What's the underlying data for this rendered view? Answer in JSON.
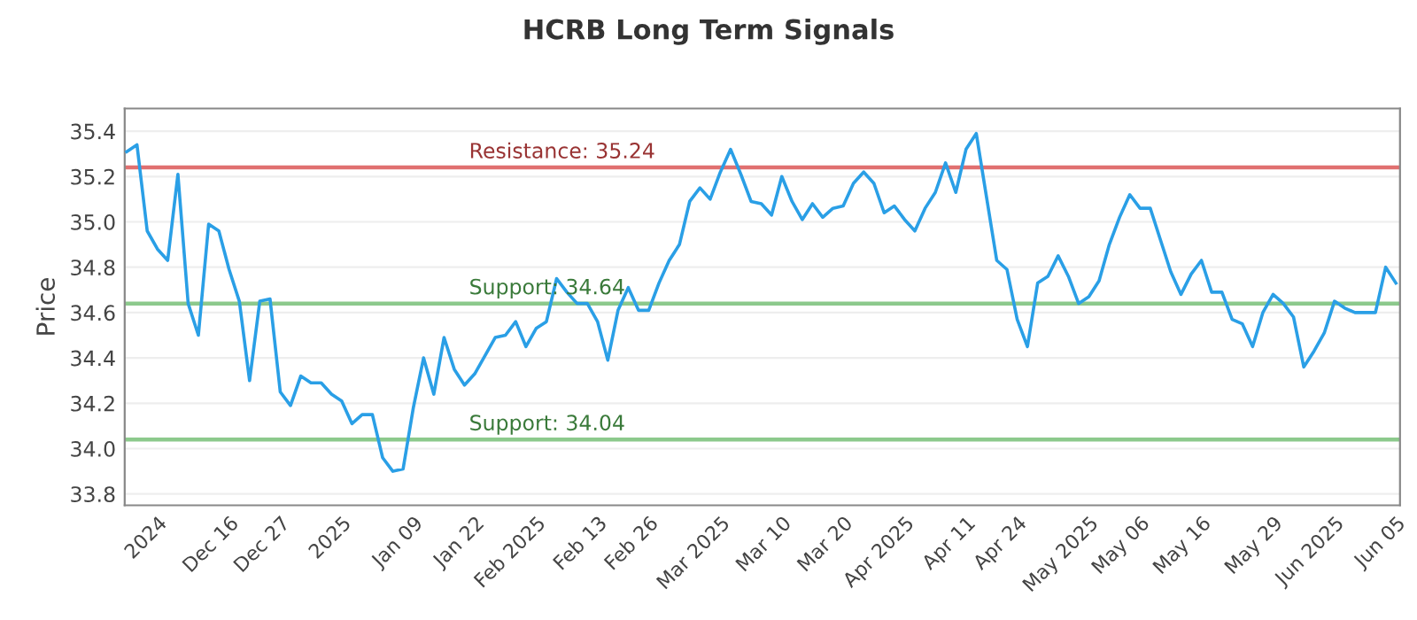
{
  "chart_data": {
    "type": "line",
    "title": "HCRB Long Term Signals",
    "ylabel": "Price",
    "categories": [
      null,
      null,
      null,
      "2024",
      null,
      null,
      null,
      null,
      null,
      null,
      "Dec 16",
      null,
      null,
      null,
      null,
      "Dec 27",
      null,
      null,
      null,
      null,
      null,
      "2025",
      null,
      null,
      null,
      null,
      null,
      null,
      "Jan 09",
      null,
      null,
      null,
      null,
      null,
      "Jan 22",
      null,
      null,
      null,
      null,
      null,
      "Feb 2025",
      null,
      null,
      null,
      null,
      null,
      "Feb 13",
      null,
      null,
      null,
      null,
      "Feb 26",
      null,
      null,
      null,
      null,
      null,
      null,
      "Mar 2025",
      null,
      null,
      null,
      null,
      null,
      "Mar 10",
      null,
      null,
      null,
      null,
      null,
      "Mar 20",
      null,
      null,
      null,
      null,
      null,
      "Apr 2025",
      null,
      null,
      null,
      null,
      null,
      "Apr 11",
      null,
      null,
      null,
      null,
      "Apr 24",
      null,
      null,
      null,
      null,
      null,
      null,
      "May 2025",
      null,
      null,
      null,
      null,
      "May 06",
      null,
      null,
      null,
      null,
      null,
      "May 16",
      null,
      null,
      null,
      null,
      null,
      null,
      "May 29",
      null,
      null,
      null,
      null,
      null,
      "Jun 2025",
      null,
      null,
      null,
      null,
      null,
      "Jun 05"
    ],
    "series": [
      {
        "color": "#2a9fe6",
        "values": [
          35.31,
          35.34,
          34.96,
          34.88,
          34.83,
          35.21,
          34.64,
          34.5,
          34.99,
          34.96,
          34.79,
          34.65,
          34.3,
          34.65,
          34.66,
          34.25,
          34.19,
          34.32,
          34.29,
          34.29,
          34.24,
          34.21,
          34.11,
          34.15,
          34.15,
          33.96,
          33.9,
          33.91,
          34.18,
          34.4,
          34.24,
          34.49,
          34.35,
          34.28,
          34.33,
          34.41,
          34.49,
          34.5,
          34.56,
          34.45,
          34.53,
          34.56,
          34.75,
          34.69,
          34.64,
          34.64,
          34.56,
          34.39,
          34.61,
          34.71,
          34.61,
          34.61,
          34.73,
          34.83,
          34.9,
          35.09,
          35.15,
          35.1,
          35.22,
          35.32,
          35.21,
          35.09,
          35.08,
          35.03,
          35.2,
          35.09,
          35.01,
          35.08,
          35.02,
          35.06,
          35.07,
          35.17,
          35.22,
          35.17,
          35.04,
          35.07,
          35.01,
          34.96,
          35.06,
          35.13,
          35.26,
          35.13,
          35.32,
          35.39,
          35.11,
          34.83,
          34.79,
          34.57,
          34.45,
          34.73,
          34.76,
          34.85,
          34.76,
          34.64,
          34.67,
          34.74,
          34.9,
          35.02,
          35.12,
          35.06,
          35.06,
          34.92,
          34.78,
          34.68,
          34.77,
          34.83,
          34.69,
          34.69,
          34.57,
          34.55,
          34.45,
          34.6,
          34.68,
          34.64,
          34.58,
          34.36,
          34.43,
          34.51,
          34.65,
          34.62,
          34.6,
          34.6,
          34.6,
          34.8,
          34.73
        ]
      }
    ],
    "ylim": [
      33.75,
      35.5
    ],
    "yticks": [
      {
        "value": 33.8,
        "label": "33.8"
      },
      {
        "value": 34.0,
        "label": "34.0"
      },
      {
        "value": 34.2,
        "label": "34.2"
      },
      {
        "value": 34.4,
        "label": "34.4"
      },
      {
        "value": 34.6,
        "label": "34.6"
      },
      {
        "value": 34.8,
        "label": "34.8"
      },
      {
        "value": 35.0,
        "label": "35.0"
      },
      {
        "value": 35.2,
        "label": "35.2"
      },
      {
        "value": 35.4,
        "label": "35.4"
      }
    ],
    "ref_lines": [
      {
        "axis": "y",
        "value": 35.24,
        "label": "Resistance: 35.24",
        "color": "#e07070"
      },
      {
        "axis": "y",
        "value": 34.64,
        "label": "Support: 34.64",
        "color": "#8cc98c"
      },
      {
        "axis": "y",
        "value": 34.04,
        "label": "Support: 34.04",
        "color": "#8cc98c"
      }
    ],
    "grid": "y",
    "legend": false,
    "marker": "none",
    "line_style": "solid"
  }
}
